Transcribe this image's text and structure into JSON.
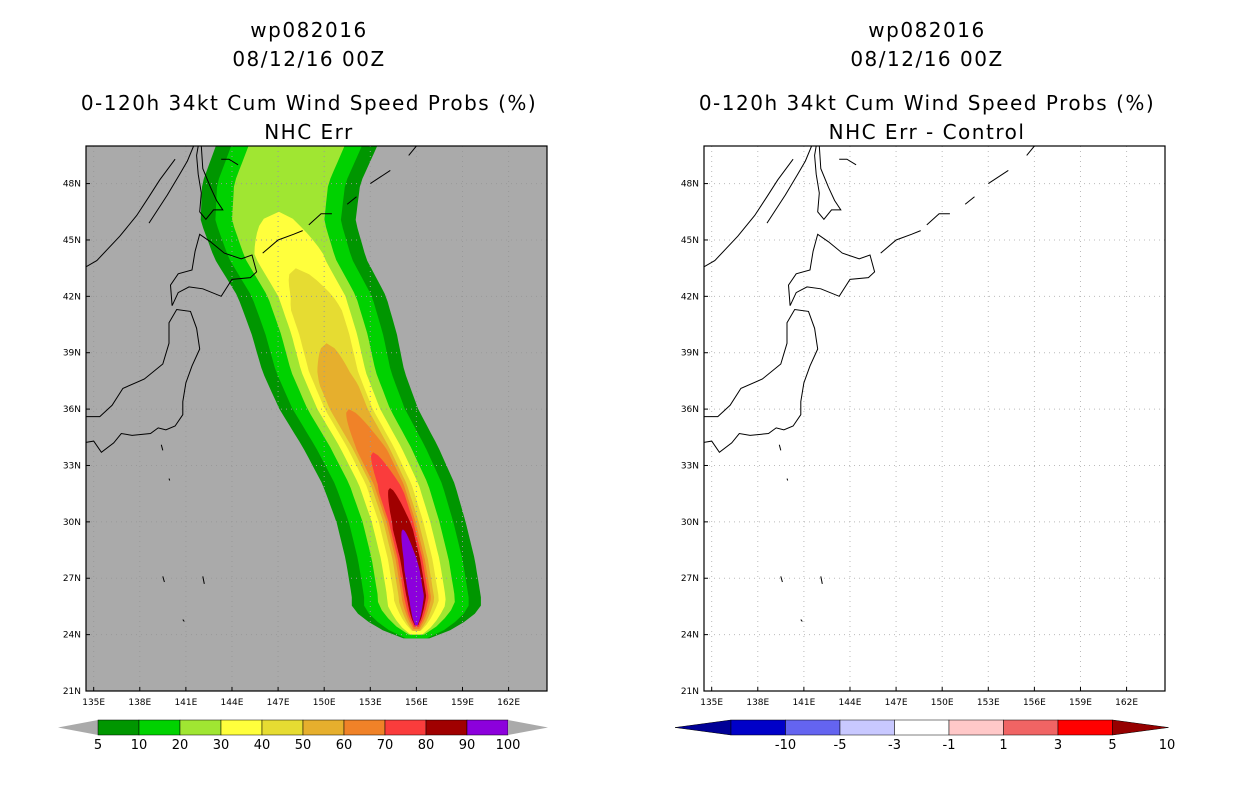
{
  "chart_data": [
    {
      "type": "heatmap",
      "title_lines": [
        "wp082016",
        "08/12/16 00Z",
        "0-120h 34kt Cum Wind Speed Probs (%)",
        "NHC Err"
      ],
      "x_ticks": [
        "135E",
        "138E",
        "141E",
        "144E",
        "147E",
        "150E",
        "153E",
        "156E",
        "159E",
        "162E"
      ],
      "y_ticks": [
        "48N",
        "45N",
        "42N",
        "39N",
        "36N",
        "33N",
        "30N",
        "27N",
        "24N",
        "21N"
      ],
      "xlim": [
        134.5,
        164.5
      ],
      "ylim": [
        21,
        50
      ],
      "grid": true,
      "background": "#aaaaaa",
      "colorbar": {
        "labels": [
          "5",
          "10",
          "20",
          "30",
          "40",
          "50",
          "60",
          "70",
          "80",
          "90",
          "100"
        ],
        "colors": [
          "#009600",
          "#00d200",
          "#a0e632",
          "#ffff3c",
          "#e6dc32",
          "#e6af2d",
          "#f08228",
          "#fa3c3c",
          "#a00000",
          "#8c00dc"
        ]
      },
      "probability_regions": [
        {
          "level": 5,
          "color": "#009600"
        },
        {
          "level": 10,
          "color": "#00d200"
        },
        {
          "level": 20,
          "color": "#a0e632"
        },
        {
          "level": 30,
          "color": "#ffff3c"
        },
        {
          "level": 40,
          "color": "#e6dc32"
        },
        {
          "level": 50,
          "color": "#e6af2d"
        },
        {
          "level": 60,
          "color": "#f08228"
        },
        {
          "level": 70,
          "color": "#fa3c3c"
        },
        {
          "level": 80,
          "color": "#a00000"
        },
        {
          "level": 90,
          "color": "#8c00dc"
        }
      ]
    },
    {
      "type": "heatmap",
      "title_lines": [
        "wp082016",
        "08/12/16 00Z",
        "0-120h 34kt Cum Wind Speed Probs (%)",
        "NHC Err - Control"
      ],
      "x_ticks": [
        "135E",
        "138E",
        "141E",
        "144E",
        "147E",
        "150E",
        "153E",
        "156E",
        "159E",
        "162E"
      ],
      "y_ticks": [
        "48N",
        "45N",
        "42N",
        "39N",
        "36N",
        "33N",
        "30N",
        "27N",
        "24N",
        "21N"
      ],
      "xlim": [
        134.5,
        164.5
      ],
      "ylim": [
        21,
        50
      ],
      "grid": true,
      "background": "#ffffff",
      "colorbar": {
        "labels": [
          "-10",
          "-5",
          "-3",
          "-1",
          "1",
          "3",
          "5",
          "10"
        ],
        "colors": [
          "#0000c8",
          "#6464f0",
          "#c8c8ff",
          "#ffffff",
          "#ffc8c8",
          "#f06464",
          "#ff0000"
        ],
        "low_extension_color": "#000096",
        "high_extension_color": "#960000"
      },
      "values": "all differences between -1 and 1 (no shading)"
    }
  ]
}
